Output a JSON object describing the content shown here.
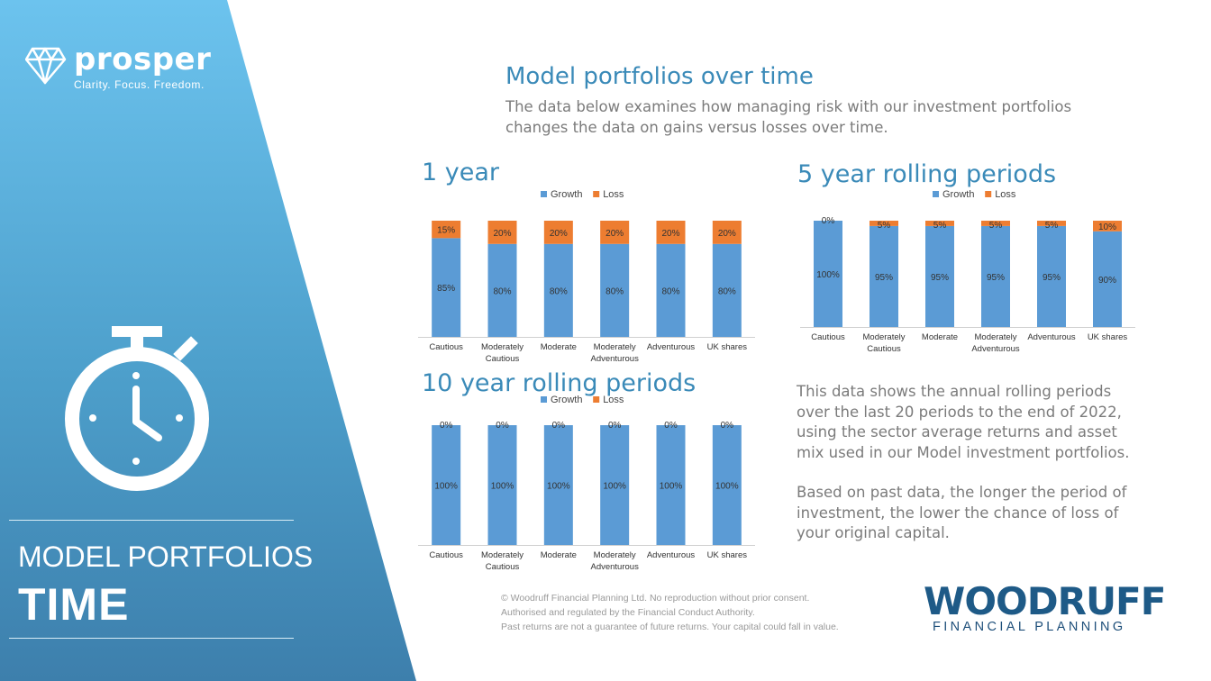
{
  "brand": {
    "name": "prosper",
    "tagline": "Clarity. Focus. Freedom."
  },
  "sidebar": {
    "title_line1": "MODEL PORTFOLIOS",
    "title_line2": "TIME"
  },
  "main": {
    "heading": "Model portfolios over time",
    "intro_line1": "The data below examines how managing risk with our investment portfolios",
    "intro_line2": "changes the data on gains versus losses over time."
  },
  "notes": {
    "p1_lines": [
      "This data shows the annual rolling periods",
      "over the last 20 periods to the end of 2022,",
      "using the sector average returns and asset",
      "mix used in our Model investment portfolios."
    ],
    "p2_lines": [
      "Based on past data, the longer the period of",
      "investment, the lower the chance of loss of",
      "your original capital."
    ]
  },
  "footer": {
    "line1": "© Woodruff Financial Planning Ltd. No reproduction without prior consent.",
    "line2": "Authorised and regulated by the Financial Conduct Authority.",
    "line3": "Past returns are not a guarantee of future returns. Your capital could fall in value."
  },
  "company": {
    "name": "WOODRUFF",
    "sub": "FINANCIAL PLANNING"
  },
  "colors": {
    "growth": "#5b9bd5",
    "loss": "#ed7d31",
    "heading": "#3a8ab8",
    "accent": "#1e5a87"
  },
  "chart_data": [
    {
      "type": "bar",
      "stacked": true,
      "title": "1 year",
      "categories": [
        [
          "Cautious"
        ],
        [
          "Moderately",
          "Cautious"
        ],
        [
          "Moderate"
        ],
        [
          "Moderately",
          "Adventurous"
        ],
        [
          "Adventurous"
        ],
        [
          "UK shares"
        ]
      ],
      "series": [
        {
          "name": "Growth",
          "values": [
            85,
            80,
            80,
            80,
            80,
            80
          ],
          "labels": [
            "85%",
            "80%",
            "80%",
            "80%",
            "80%",
            "80%"
          ]
        },
        {
          "name": "Loss",
          "values": [
            15,
            20,
            20,
            20,
            20,
            20
          ],
          "labels": [
            "15%",
            "20%",
            "20%",
            "20%",
            "20%",
            "20%"
          ]
        }
      ],
      "ylim": [
        0,
        100
      ],
      "legend": "top"
    },
    {
      "type": "bar",
      "stacked": true,
      "title": "5 year rolling periods",
      "categories": [
        [
          "Cautious"
        ],
        [
          "Moderately",
          "Cautious"
        ],
        [
          "Moderate"
        ],
        [
          "Moderately",
          "Adventurous"
        ],
        [
          "Adventurous"
        ],
        [
          "UK shares"
        ]
      ],
      "series": [
        {
          "name": "Growth",
          "values": [
            100,
            95,
            95,
            95,
            95,
            90
          ],
          "labels": [
            "100%",
            "95%",
            "95%",
            "95%",
            "95%",
            "90%"
          ]
        },
        {
          "name": "Loss",
          "values": [
            0,
            5,
            5,
            5,
            5,
            10
          ],
          "labels": [
            "0%",
            "5%",
            "5%",
            "5%",
            "5%",
            "10%"
          ]
        }
      ],
      "ylim": [
        0,
        100
      ],
      "legend": "top"
    },
    {
      "type": "bar",
      "stacked": true,
      "title": "10 year rolling periods",
      "categories": [
        [
          "Cautious"
        ],
        [
          "Moderately",
          "Cautious"
        ],
        [
          "Moderate"
        ],
        [
          "Moderately",
          "Adventurous"
        ],
        [
          "Adventurous"
        ],
        [
          "UK shares"
        ]
      ],
      "series": [
        {
          "name": "Growth",
          "values": [
            100,
            100,
            100,
            100,
            100,
            100
          ],
          "labels": [
            "100%",
            "100%",
            "100%",
            "100%",
            "100%",
            "100%"
          ]
        },
        {
          "name": "Loss",
          "values": [
            0,
            0,
            0,
            0,
            0,
            0
          ],
          "labels": [
            "0%",
            "0%",
            "0%",
            "0%",
            "0%",
            "0%"
          ]
        }
      ],
      "ylim": [
        0,
        100
      ],
      "legend": "top"
    }
  ]
}
